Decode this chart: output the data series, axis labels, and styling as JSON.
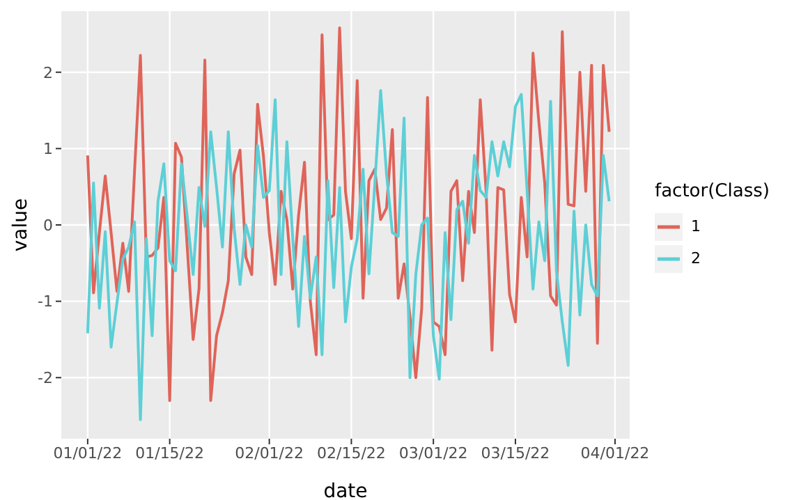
{
  "chart_data": {
    "type": "line",
    "xlabel": "date",
    "ylabel": "value",
    "legend_title": "factor(Class)",
    "legend": "right",
    "grid": true,
    "line_style": "solid",
    "marker": "none",
    "x": [
      "2022-01-01",
      "2022-01-02",
      "2022-01-03",
      "2022-01-04",
      "2022-01-05",
      "2022-01-06",
      "2022-01-07",
      "2022-01-08",
      "2022-01-09",
      "2022-01-10",
      "2022-01-11",
      "2022-01-12",
      "2022-01-13",
      "2022-01-14",
      "2022-01-15",
      "2022-01-16",
      "2022-01-17",
      "2022-01-18",
      "2022-01-19",
      "2022-01-20",
      "2022-01-21",
      "2022-01-22",
      "2022-01-23",
      "2022-01-24",
      "2022-01-25",
      "2022-01-26",
      "2022-01-27",
      "2022-01-28",
      "2022-01-29",
      "2022-01-30",
      "2022-01-31",
      "2022-02-01",
      "2022-02-02",
      "2022-02-03",
      "2022-02-04",
      "2022-02-05",
      "2022-02-06",
      "2022-02-07",
      "2022-02-08",
      "2022-02-09",
      "2022-02-10",
      "2022-02-11",
      "2022-02-12",
      "2022-02-13",
      "2022-02-14",
      "2022-02-15",
      "2022-02-16",
      "2022-02-17",
      "2022-02-18",
      "2022-02-19",
      "2022-02-20",
      "2022-02-21",
      "2022-02-22",
      "2022-02-23",
      "2022-02-24",
      "2022-02-25",
      "2022-02-26",
      "2022-02-27",
      "2022-02-28",
      "2022-03-01",
      "2022-03-02",
      "2022-03-03",
      "2022-03-04",
      "2022-03-05",
      "2022-03-06",
      "2022-03-07",
      "2022-03-08",
      "2022-03-09",
      "2022-03-10",
      "2022-03-11",
      "2022-03-12",
      "2022-03-13",
      "2022-03-14",
      "2022-03-15",
      "2022-03-16",
      "2022-03-17",
      "2022-03-18",
      "2022-03-19",
      "2022-03-20",
      "2022-03-21",
      "2022-03-22",
      "2022-03-23",
      "2022-03-24",
      "2022-03-25",
      "2022-03-26",
      "2022-03-27",
      "2022-03-28",
      "2022-03-29",
      "2022-03-30",
      "2022-03-31"
    ],
    "series": [
      {
        "name": "1",
        "color": "#df6459",
        "values": [
          0.91,
          -0.89,
          -0.1,
          0.64,
          -0.1,
          -0.87,
          -0.24,
          -0.87,
          0.7,
          2.22,
          -0.42,
          -0.4,
          -0.3,
          0.36,
          -2.3,
          1.07,
          0.89,
          -0.3,
          -1.5,
          -0.84,
          2.16,
          -2.3,
          -1.45,
          -1.15,
          -0.73,
          0.67,
          0.98,
          -0.42,
          -0.65,
          1.58,
          0.9,
          -0.1,
          -0.78,
          0.44,
          0.07,
          -0.84,
          0.13,
          0.82,
          -1.0,
          -1.7,
          2.49,
          0.07,
          0.13,
          2.58,
          0.44,
          -0.18,
          1.89,
          -0.96,
          0.58,
          0.73,
          0.07,
          0.22,
          1.25,
          -0.96,
          -0.51,
          -1.2,
          -2.0,
          -1.1,
          1.67,
          -1.27,
          -1.33,
          -1.7,
          0.44,
          0.58,
          -0.73,
          0.44,
          -0.1,
          1.64,
          0.44,
          -1.64,
          0.49,
          0.46,
          -0.91,
          -1.27,
          0.36,
          -0.42,
          2.25,
          1.35,
          0.55,
          -0.93,
          -1.05,
          2.53,
          0.27,
          0.25,
          2.0,
          0.44,
          2.09,
          -1.55,
          2.09,
          1.22
        ]
      },
      {
        "name": "2",
        "color": "#5dcfd6",
        "values": [
          -1.42,
          0.55,
          -1.09,
          -0.09,
          -1.6,
          -1.02,
          -0.45,
          -0.29,
          0.04,
          -2.55,
          -0.18,
          -1.45,
          0.31,
          0.8,
          -0.47,
          -0.6,
          0.8,
          0.1,
          -0.65,
          0.49,
          -0.02,
          1.22,
          0.49,
          -0.29,
          1.22,
          -0.05,
          -0.78,
          0,
          -0.29,
          1.04,
          0.36,
          0.45,
          1.64,
          -0.65,
          1.09,
          -0.18,
          -1.33,
          -0.15,
          -0.96,
          -0.42,
          -1.7,
          0.58,
          -0.82,
          0.49,
          -1.27,
          -0.55,
          -0.18,
          0.73,
          -0.64,
          0.53,
          1.76,
          0.67,
          -0.1,
          -0.15,
          1.4,
          -2.0,
          -0.65,
          0,
          0.09,
          -1.45,
          -2.02,
          -0.1,
          -1.24,
          0.2,
          0.31,
          -0.24,
          0.91,
          0.45,
          0.36,
          1.09,
          0.64,
          1.09,
          0.76,
          1.55,
          1.71,
          0.44,
          -0.84,
          0.04,
          -0.47,
          1.62,
          -0.6,
          -1.27,
          -1.84,
          0.18,
          -1.18,
          0,
          -0.78,
          -0.93,
          0.91,
          0.31
        ]
      }
    ],
    "xlim": [
      "2021-12-27T12:00",
      "2022-04-03T12:00"
    ],
    "xticks": [
      {
        "value": "2022-01-01",
        "label": "01/01/22"
      },
      {
        "value": "2022-01-15",
        "label": "01/15/22"
      },
      {
        "value": "2022-02-01",
        "label": "02/01/22"
      },
      {
        "value": "2022-02-15",
        "label": "02/15/22"
      },
      {
        "value": "2022-03-01",
        "label": "03/01/22"
      },
      {
        "value": "2022-03-15",
        "label": "03/15/22"
      },
      {
        "value": "2022-04-01",
        "label": "04/01/22"
      }
    ],
    "ylim": [
      -2.8,
      2.8
    ],
    "yticks": [
      -2,
      -1,
      0,
      1,
      2
    ]
  }
}
